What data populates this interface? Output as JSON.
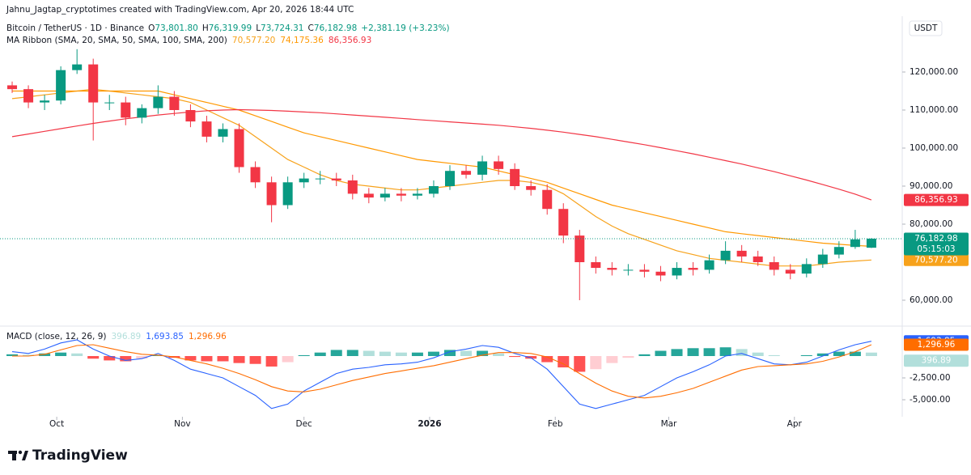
{
  "credit": "Jahnu_Jagtap_cryptotimes created with TradingView.com, Apr 20, 2026 18:44 UTC",
  "footer": "TradingView",
  "chart_data": [
    {
      "type": "candlestick",
      "title": "Bitcoin / TetherUS · 1D · Binance",
      "ohlc_labels": [
        {
          "key": "O",
          "value": "73,801.80"
        },
        {
          "key": "H",
          "value": "76,319.99"
        },
        {
          "key": "L",
          "value": "73,724.31"
        },
        {
          "key": "C",
          "value": "76,182.98"
        }
      ],
      "change": "+2,381.19 (+3.23%)",
      "countdown": "05:15:03",
      "currency": "USDT",
      "up_color": "#089981",
      "down_color": "#f23645",
      "categories": [
        null,
        null,
        null,
        null,
        null,
        null,
        null,
        null,
        null,
        null,
        null,
        null,
        null,
        null,
        null,
        null,
        null,
        null,
        null,
        null,
        null,
        null,
        null,
        null,
        null,
        null,
        null,
        null,
        null,
        null,
        null,
        null,
        null,
        null,
        null,
        null,
        null,
        null,
        null,
        null,
        null,
        null,
        null,
        null,
        null,
        null,
        null,
        null,
        null,
        null,
        null,
        null,
        null,
        null
      ],
      "open": [
        116500,
        115500,
        112000,
        112500,
        120500,
        122000,
        112000,
        112000,
        108000,
        110500,
        113500,
        110000,
        107000,
        103000,
        105000,
        95000,
        91000,
        85000,
        91000,
        92000,
        92000,
        91500,
        88000,
        87000,
        88000,
        87500,
        88000,
        90000,
        94000,
        93000,
        96500,
        94500,
        90000,
        89000,
        84000,
        77000,
        70000,
        68500,
        68000,
        68000,
        67500,
        66500,
        68500,
        68000,
        70500,
        73000,
        71500,
        70000,
        68000,
        67000,
        69500,
        72000,
        74000,
        73801.8
      ],
      "high": [
        117500,
        116500,
        114000,
        121500,
        126000,
        123500,
        114000,
        113500,
        111500,
        116500,
        115000,
        111500,
        108500,
        106500,
        106500,
        96500,
        92500,
        92500,
        93500,
        94000,
        93500,
        93000,
        89500,
        89500,
        89500,
        89500,
        91500,
        95500,
        95500,
        98000,
        98000,
        96000,
        91500,
        90500,
        85500,
        78500,
        71500,
        70000,
        69500,
        69500,
        69000,
        70000,
        70000,
        72000,
        75500,
        74500,
        73000,
        71500,
        69500,
        71000,
        73500,
        75500,
        78500,
        76319.99
      ],
      "low": [
        114500,
        110500,
        110000,
        111500,
        119500,
        102000,
        110000,
        106000,
        106500,
        109000,
        108500,
        105500,
        101500,
        101500,
        93500,
        89500,
        80500,
        84000,
        89500,
        90500,
        90000,
        86500,
        85500,
        86000,
        86000,
        86500,
        87000,
        89000,
        92000,
        91500,
        93000,
        89000,
        87500,
        82500,
        75000,
        60000,
        67000,
        66500,
        66500,
        66000,
        65000,
        65500,
        66500,
        67000,
        69500,
        70000,
        69000,
        66500,
        65500,
        66000,
        68500,
        71000,
        73500,
        73724.31
      ],
      "close": [
        115500,
        112000,
        112500,
        120500,
        122000,
        112000,
        112000,
        108000,
        110500,
        113500,
        110000,
        107000,
        103000,
        105000,
        95000,
        91000,
        85000,
        91000,
        92000,
        92000,
        91500,
        88000,
        87000,
        88000,
        87500,
        88000,
        90000,
        94000,
        93000,
        96500,
        94500,
        90000,
        89000,
        84000,
        77000,
        70000,
        68500,
        68000,
        68000,
        67500,
        66500,
        68500,
        68000,
        70500,
        73000,
        71500,
        70000,
        68000,
        67000,
        69500,
        72000,
        74000,
        76000,
        76182.98
      ],
      "ylim": [
        53830,
        134681
      ],
      "yticks": [
        {
          "value": 60000,
          "label": "60,000.00"
        },
        {
          "value": 80000,
          "label": "80,000.00"
        },
        {
          "value": 90000,
          "label": "90,000.00"
        },
        {
          "value": 100000,
          "label": "100,000.00"
        },
        {
          "value": 110000,
          "label": "110,000.00"
        },
        {
          "value": 120000,
          "label": "120,000.00"
        }
      ],
      "xlim": [
        -0.75,
        54.9
      ],
      "xticks": [
        {
          "value": 2.75,
          "label": "Oct"
        },
        {
          "value": 10.5,
          "label": "Nov"
        },
        {
          "value": 18,
          "label": "Dec"
        },
        {
          "value": 25.75,
          "label": "2026"
        },
        {
          "value": 33.5,
          "label": "Feb"
        },
        {
          "value": 40.5,
          "label": "Mar"
        },
        {
          "value": 48.25,
          "label": "Apr"
        }
      ],
      "overlay": {
        "name": "MA Ribbon (SMA, 20, SMA, 50, SMA, 100, SMA, 200)",
        "series": [
          {
            "color": "#f7a21b",
            "value_label": "70,577.20",
            "values": [
              113000,
              113500,
              114000,
              114500,
              115000,
              115500,
              115000,
              114500,
              114000,
              113500,
              113000,
              112000,
              110000,
              108000,
              106000,
              103000,
              100000,
              97000,
              95000,
              93000,
              91500,
              90500,
              90000,
              89500,
              89000,
              89000,
              89500,
              90000,
              90500,
              91000,
              91500,
              91500,
              91000,
              90000,
              88000,
              85000,
              82000,
              79500,
              77500,
              76000,
              74500,
              73000,
              72000,
              71000,
              70500,
              70000,
              69500,
              69000,
              69000,
              69000,
              69500,
              70000,
              70300,
              70577.2
            ]
          },
          {
            "color": "#ff9800",
            "value_label": "74,175.36",
            "values": [
              115000,
              115000,
              115000,
              115000,
              115000,
              115000,
              115000,
              115000,
              115000,
              115000,
              114000,
              113000,
              112000,
              111000,
              110000,
              108500,
              107000,
              105500,
              104000,
              103000,
              102000,
              101000,
              100000,
              99000,
              98000,
              97000,
              96500,
              96000,
              95500,
              95000,
              94000,
              93000,
              92000,
              91000,
              89500,
              88000,
              86500,
              85000,
              84000,
              83000,
              82000,
              81000,
              80000,
              79000,
              78000,
              77500,
              77000,
              76500,
              76000,
              75500,
              75000,
              74700,
              74400,
              74175.36
            ]
          },
          {
            "color": "#f23645",
            "value_label": "86,356.93",
            "values": [
              103000,
              103700,
              104400,
              105100,
              105800,
              106500,
              107100,
              107700,
              108200,
              108700,
              109100,
              109500,
              109800,
              110000,
              110100,
              110000,
              109900,
              109700,
              109500,
              109300,
              109000,
              108700,
              108400,
              108100,
              107800,
              107500,
              107200,
              106900,
              106600,
              106300,
              106000,
              105600,
              105200,
              104700,
              104200,
              103600,
              103000,
              102300,
              101600,
              100900,
              100100,
              99300,
              98500,
              97600,
              96700,
              95800,
              94800,
              93800,
              92700,
              91600,
              90400,
              89200,
              87900,
              86356.93
            ]
          }
        ]
      }
    },
    {
      "type": "macd",
      "name": "MACD (close, 12, 26, 9)",
      "ylim": [
        -6944,
        3241
      ],
      "yticks": [
        {
          "value": -2500,
          "label": "-2,500.00"
        },
        {
          "value": -5000,
          "label": "-5,000.00"
        }
      ],
      "series": [
        {
          "kind": "histogram",
          "colors": [
            "#26a69a",
            "#b2dfdb",
            "#ffcdd2",
            "#ff5252"
          ],
          "value_label": "396.89",
          "values": [
            200,
            150,
            300,
            400,
            300,
            -300,
            -500,
            -600,
            -300,
            100,
            -200,
            -500,
            -600,
            -600,
            -800,
            -900,
            -1200,
            -700,
            100,
            400,
            700,
            700,
            600,
            500,
            400,
            400,
            500,
            700,
            600,
            600,
            300,
            -100,
            -300,
            -700,
            -1300,
            -1800,
            -1500,
            -800,
            -200,
            200,
            600,
            800,
            900,
            900,
            1000,
            800,
            400,
            100,
            0,
            100,
            300,
            500,
            500,
            396.89
          ]
        },
        {
          "kind": "line",
          "color": "#2962ff",
          "value_label": "1,693.85",
          "values": [
            500,
            300,
            800,
            1500,
            1850,
            800,
            0,
            -500,
            -300,
            300,
            -500,
            -1500,
            -2000,
            -2500,
            -3500,
            -4500,
            -6000,
            -5500,
            -4000,
            -3000,
            -2000,
            -1500,
            -1300,
            -1000,
            -900,
            -700,
            -200,
            500,
            800,
            1200,
            1000,
            300,
            -200,
            -1500,
            -3500,
            -5500,
            -6000,
            -5500,
            -5000,
            -4500,
            -3500,
            -2500,
            -1800,
            -1000,
            0,
            300,
            -300,
            -900,
            -1000,
            -700,
            0,
            700,
            1300,
            1693.85
          ]
        },
        {
          "kind": "line",
          "color": "#ff6d00",
          "value_label": "1,296.96",
          "values": [
            0,
            0,
            200,
            700,
            1200,
            1300,
            900,
            500,
            200,
            100,
            -100,
            -500,
            -900,
            -1400,
            -2000,
            -2700,
            -3500,
            -4000,
            -4100,
            -3800,
            -3300,
            -2800,
            -2400,
            -2000,
            -1700,
            -1400,
            -1100,
            -700,
            -300,
            100,
            400,
            400,
            300,
            -100,
            -900,
            -2000,
            -3100,
            -4000,
            -4600,
            -4800,
            -4600,
            -4200,
            -3700,
            -3000,
            -2300,
            -1600,
            -1200,
            -1100,
            -1000,
            -900,
            -600,
            -100,
            500,
            1296.96
          ]
        }
      ]
    }
  ]
}
